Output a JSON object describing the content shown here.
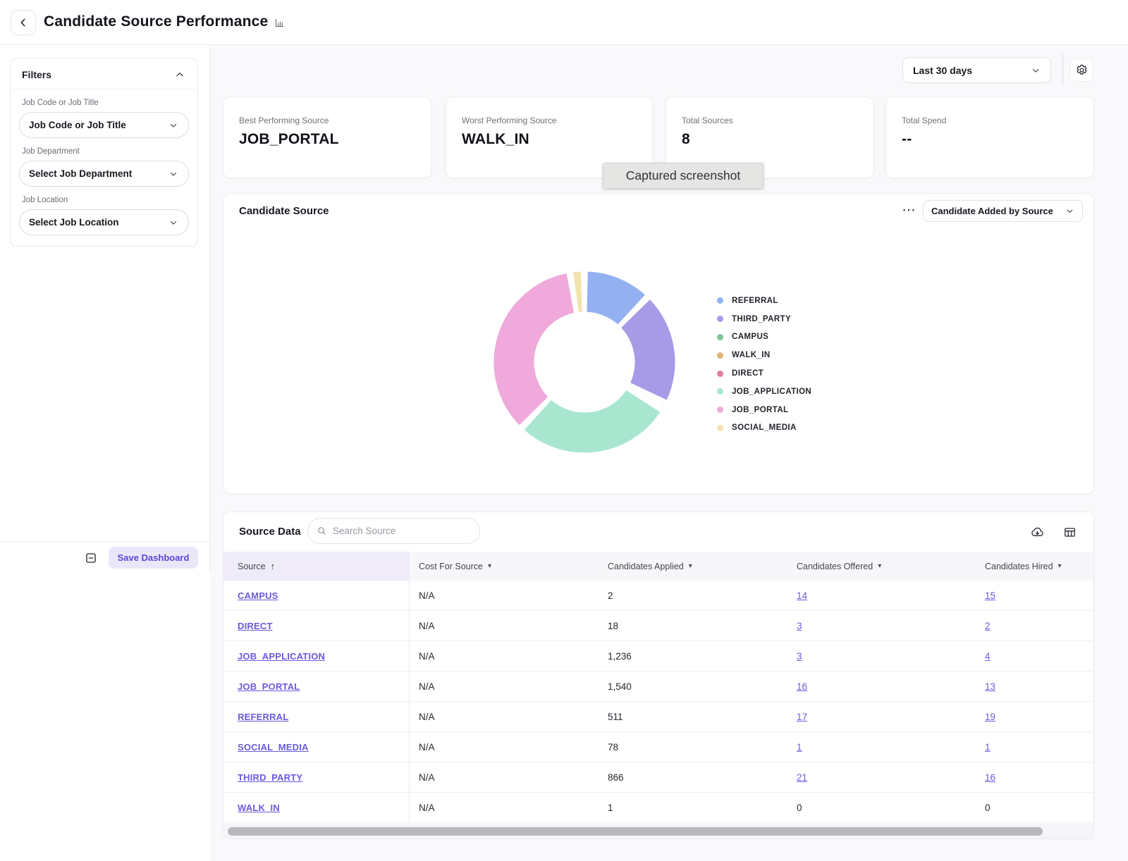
{
  "header": {
    "title": "Candidate Source Performance"
  },
  "topbar": {
    "date_range": "Last 30 days"
  },
  "tooltip": {
    "text": "Captured screenshot"
  },
  "filters": {
    "title": "Filters",
    "fields": [
      {
        "label": "Job Code or Job Title",
        "value": "Job Code or Job Title"
      },
      {
        "label": "Job Department",
        "value": "Select Job Department"
      },
      {
        "label": "Job Location",
        "value": "Select Job Location"
      }
    ],
    "save_button": "Save Dashboard"
  },
  "kpis": [
    {
      "label": "Best Performing Source",
      "value": "JOB_PORTAL"
    },
    {
      "label": "Worst Performing Source",
      "value": "WALK_IN"
    },
    {
      "label": "Total Sources",
      "value": "8"
    },
    {
      "label": "Total Spend",
      "value": "--"
    }
  ],
  "chart_card": {
    "title": "Candidate Source",
    "more_menu": "⋯",
    "metric_select": "Candidate Added by Source"
  },
  "chart_data": {
    "type": "pie",
    "title": "Candidate Source",
    "donut": true,
    "legend_position": "right",
    "slices": [
      {
        "label": "REFERRAL",
        "value": 511,
        "color": "#93b1f0"
      },
      {
        "label": "THIRD_PARTY",
        "value": 866,
        "color": "#a79ae6"
      },
      {
        "label": "CAMPUS",
        "value": 2,
        "color": "#7ec79b"
      },
      {
        "label": "WALK_IN",
        "value": 1,
        "color": "#e5b377"
      },
      {
        "label": "DIRECT",
        "value": 18,
        "color": "#e0809b"
      },
      {
        "label": "JOB_APPLICATION",
        "value": 1236,
        "color": "#a9e6d0"
      },
      {
        "label": "JOB_PORTAL",
        "value": 1540,
        "color": "#efa9db"
      },
      {
        "label": "SOCIAL_MEDIA",
        "value": 78,
        "color": "#f2e3ae"
      }
    ]
  },
  "table": {
    "title": "Source Data",
    "search_placeholder": "Search Source",
    "columns": [
      "Source",
      "Cost For Source",
      "Candidates Applied",
      "Candidates Offered",
      "Candidates Hired"
    ],
    "rows": [
      {
        "source": "CAMPUS",
        "cost": "N/A",
        "applied": "2",
        "offered": "14",
        "hired": "15"
      },
      {
        "source": "DIRECT",
        "cost": "N/A",
        "applied": "18",
        "offered": "3",
        "hired": "2"
      },
      {
        "source": "JOB_APPLICATION",
        "cost": "N/A",
        "applied": "1,236",
        "offered": "3",
        "hired": "4"
      },
      {
        "source": "JOB_PORTAL",
        "cost": "N/A",
        "applied": "1,540",
        "offered": "16",
        "hired": "13"
      },
      {
        "source": "REFERRAL",
        "cost": "N/A",
        "applied": "511",
        "offered": "17",
        "hired": "19"
      },
      {
        "source": "SOCIAL_MEDIA",
        "cost": "N/A",
        "applied": "78",
        "offered": "1",
        "hired": "1"
      },
      {
        "source": "THIRD_PARTY",
        "cost": "N/A",
        "applied": "866",
        "offered": "21",
        "hired": "16"
      },
      {
        "source": "WALK_IN",
        "cost": "N/A",
        "applied": "1",
        "offered": "0",
        "hired": "0"
      }
    ]
  },
  "colors": {
    "accent_purple": "#6a5ae0",
    "save_button_bg": "#ebe6fa",
    "header_col_highlight": "#efecf8",
    "table_header_bg": "#f7f7f9",
    "main_bg": "#f9f9fb"
  }
}
